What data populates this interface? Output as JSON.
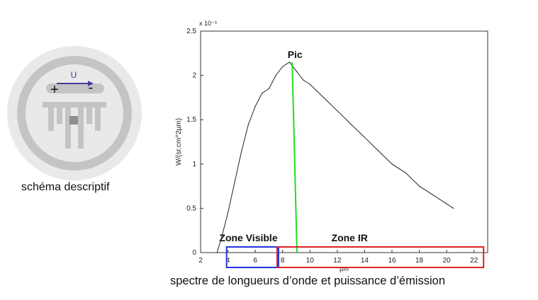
{
  "schema": {
    "voltage_label": "U",
    "plus_sign": "+",
    "minus_sign": "-",
    "caption": "schéma descriptif"
  },
  "chart_data": {
    "type": "line",
    "xlabel": "µm",
    "ylabel": "W/(sr.cm^2µm)",
    "y_exponent": "x 10⁻³",
    "xlim": [
      2,
      23
    ],
    "ylim": [
      0,
      2.5
    ],
    "x_ticks": [
      "2",
      "4",
      "6",
      "8",
      "10",
      "12",
      "14",
      "16",
      "18",
      "20",
      "22"
    ],
    "y_ticks": [
      "0",
      "0.5",
      "1",
      "1.5",
      "2",
      "2.5"
    ],
    "series": [
      {
        "name": "",
        "x": [
          3.2,
          3.5,
          4.0,
          4.5,
          5.0,
          5.5,
          6.0,
          6.5,
          7.0,
          7.5,
          8.0,
          8.5,
          9.0,
          9.5,
          10.0,
          11.0,
          12.0,
          13.0,
          14.0,
          15.0,
          16.0,
          17.0,
          18.0,
          19.0,
          20.0,
          20.5
        ],
        "values": [
          0.0,
          0.15,
          0.45,
          0.8,
          1.15,
          1.45,
          1.65,
          1.8,
          1.85,
          2.0,
          2.1,
          2.15,
          2.05,
          1.95,
          1.9,
          1.75,
          1.6,
          1.45,
          1.3,
          1.15,
          1.0,
          0.9,
          0.75,
          0.65,
          0.55,
          0.5
        ]
      }
    ],
    "annotations": {
      "peak_label": "Pic",
      "peak_x": 8.7,
      "peak_y": 2.15,
      "zone_visible_label": "Zone Visible",
      "zone_visible_range": [
        3.9,
        7.7
      ],
      "zone_ir_label": "Zone IR",
      "zone_ir_range": [
        7.6,
        22.7
      ]
    },
    "colors": {
      "peak_line": "#22dd22",
      "zone_visible": "#2233dd",
      "zone_ir": "#dd2222"
    }
  },
  "footer": {
    "caption": "spectre de longueurs d’onde et puissance d’émission"
  }
}
